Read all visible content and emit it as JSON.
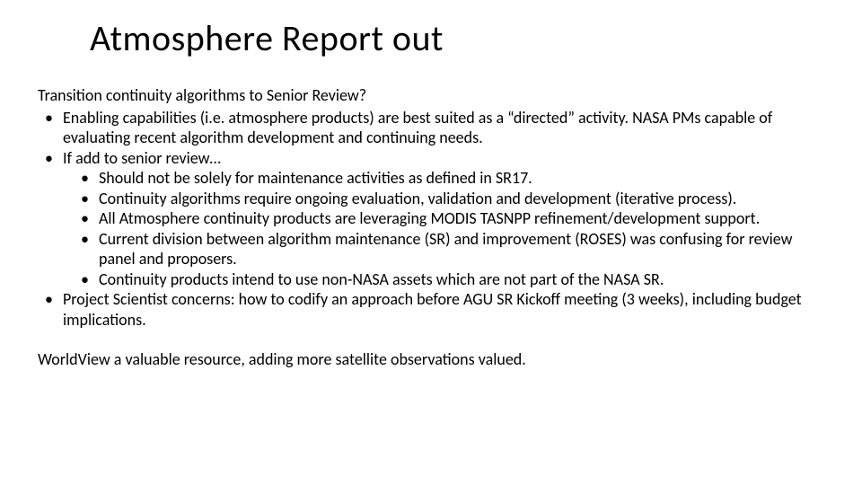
{
  "title": "Atmosphere Report out",
  "intro": "Transition continuity algorithms to Senior Review?",
  "bullets": [
    {
      "text": "Enabling capabilities (i.e. atmosphere products) are best suited as a “directed” activity. NASA PMs capable of evaluating recent algorithm development and continuing needs."
    },
    {
      "text": "If add to senior review…",
      "sub": [
        "Should not be solely for maintenance activities as defined in SR17.",
        "Continuity algorithms require ongoing evaluation, validation and development (iterative process).",
        "All Atmosphere continuity products are leveraging MODIS TASNPP refinement/development support.",
        "Current division between algorithm maintenance (SR) and improvement (ROSES) was confusing for review panel and proposers.",
        "Continuity products intend to use non-NASA assets which are not part of the NASA SR."
      ]
    },
    {
      "text": "Project Scientist concerns: how to codify an approach before AGU SR Kickoff meeting (3 weeks), including budget implications."
    }
  ],
  "closing": "WorldView a valuable resource, adding more satellite observations valued."
}
